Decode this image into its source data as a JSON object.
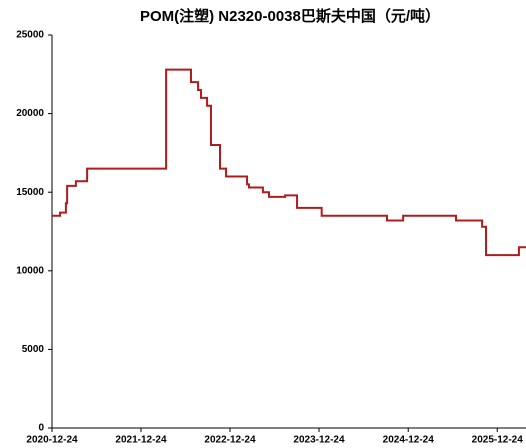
{
  "chart_data": {
    "type": "line",
    "step": true,
    "title": "POM(注塑) N2320-0038巴斯夫中国（元/吨）",
    "x": [
      "2020-12-24",
      "2021-01-26",
      "2021-02-19",
      "2021-02-24",
      "2021-04-01",
      "2021-05-17",
      "2022-04-06",
      "2022-07-17",
      "2022-08-15",
      "2022-08-27",
      "2022-09-21",
      "2022-10-07",
      "2022-11-13",
      "2022-12-08",
      "2023-03-04",
      "2023-03-12",
      "2023-05-08",
      "2023-06-02",
      "2023-08-07",
      "2023-09-25",
      "2024-01-04",
      "2024-09-28",
      "2024-12-03",
      "2025-07-08",
      "2025-10-23",
      "2025-11-08",
      "2026-03-23",
      "2026-04-21"
    ],
    "series": [
      {
        "color": "#b01c1c",
        "values": [
          13500,
          13700,
          14300,
          15400,
          15700,
          16500,
          22800,
          22000,
          21500,
          21000,
          20500,
          18000,
          16500,
          16000,
          15500,
          15300,
          15000,
          14700,
          14800,
          14000,
          13500,
          13200,
          13500,
          13200,
          12800,
          11000,
          11500,
          11500
        ]
      }
    ],
    "xlim": [
      "2020-12-24",
      "2026-04-21"
    ],
    "xticks": [
      "2020-12-24",
      "2021-12-24",
      "2022-12-24",
      "2023-12-24",
      "2024-12-24",
      "2025-12-24"
    ],
    "ylim": [
      0,
      25000
    ],
    "yticks": [
      0,
      5000,
      10000,
      15000,
      20000,
      25000
    ]
  }
}
